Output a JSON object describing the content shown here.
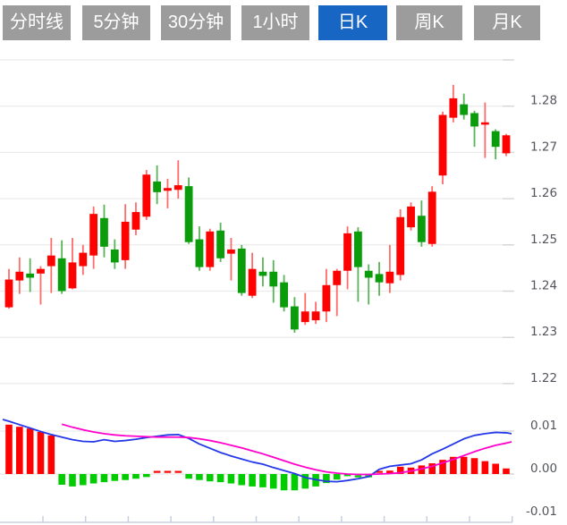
{
  "toolbar": {
    "buttons": [
      {
        "label": "分时线",
        "active": false
      },
      {
        "label": "5分钟",
        "active": false
      },
      {
        "label": "30分钟",
        "active": false
      },
      {
        "label": "1小时",
        "active": false
      },
      {
        "label": "日K",
        "active": true
      },
      {
        "label": "周K",
        "active": false
      },
      {
        "label": "月K",
        "active": false
      }
    ]
  },
  "colors": {
    "up_body": "#fe0101",
    "up_wick": "#ff6b6b",
    "down_body": "#0a9c0a",
    "down_wick": "#58b458",
    "hist_up": "#fe0101",
    "hist_down": "#00cc00",
    "dif_line": "#2438e8",
    "dea_line": "#ff00cc",
    "grid": "#ececec",
    "grid_stub": "#d4d4d4",
    "zero_line": "#e8e8e8",
    "axis_text": "#54555c",
    "x_axis": "#c9cfdf",
    "button_bg": "#9c9c9c",
    "button_active_bg": "#1766c4",
    "button_text": "#ffffff"
  },
  "chart_data": {
    "type": "candlestick-with-macd",
    "price_panel": {
      "ylim": [
        1.218,
        1.292
      ],
      "gridline_values": [
        1.29,
        1.28,
        1.27,
        1.26,
        1.25,
        1.24,
        1.23,
        1.22
      ],
      "axis_labels": [
        "1.28",
        "1.27",
        "1.26",
        "1.25",
        "1.24",
        "1.23",
        "1.22"
      ],
      "up_means": "close >= open is red (CN convention)",
      "candles": [
        {
          "o": 1.2365,
          "h": 1.2448,
          "l": 1.2362,
          "c": 1.2425
        },
        {
          "o": 1.2423,
          "h": 1.2473,
          "l": 1.2394,
          "c": 1.2442
        },
        {
          "o": 1.2438,
          "h": 1.2471,
          "l": 1.2398,
          "c": 1.2429
        },
        {
          "o": 1.2438,
          "h": 1.2454,
          "l": 1.2371,
          "c": 1.2448
        },
        {
          "o": 1.2454,
          "h": 1.2515,
          "l": 1.2396,
          "c": 1.2477
        },
        {
          "o": 1.2471,
          "h": 1.251,
          "l": 1.2394,
          "c": 1.24
        },
        {
          "o": 1.2406,
          "h": 1.2515,
          "l": 1.2404,
          "c": 1.2462
        },
        {
          "o": 1.2454,
          "h": 1.25,
          "l": 1.2435,
          "c": 1.2483
        },
        {
          "o": 1.2477,
          "h": 1.2583,
          "l": 1.2448,
          "c": 1.2567
        },
        {
          "o": 1.2558,
          "h": 1.2587,
          "l": 1.2473,
          "c": 1.2496
        },
        {
          "o": 1.249,
          "h": 1.2512,
          "l": 1.2448,
          "c": 1.2462
        },
        {
          "o": 1.2467,
          "h": 1.2588,
          "l": 1.2448,
          "c": 1.255
        },
        {
          "o": 1.2533,
          "h": 1.2592,
          "l": 1.2521,
          "c": 1.2571
        },
        {
          "o": 1.2561,
          "h": 1.2662,
          "l": 1.2554,
          "c": 1.2652
        },
        {
          "o": 1.2637,
          "h": 1.2672,
          "l": 1.2588,
          "c": 1.2614
        },
        {
          "o": 1.2617,
          "h": 1.2643,
          "l": 1.2579,
          "c": 1.2623
        },
        {
          "o": 1.2619,
          "h": 1.2683,
          "l": 1.26,
          "c": 1.2629
        },
        {
          "o": 1.2627,
          "h": 1.2646,
          "l": 1.2502,
          "c": 1.2506
        },
        {
          "o": 1.2512,
          "h": 1.254,
          "l": 1.2444,
          "c": 1.2452
        },
        {
          "o": 1.2452,
          "h": 1.2535,
          "l": 1.2444,
          "c": 1.2529
        },
        {
          "o": 1.2531,
          "h": 1.2548,
          "l": 1.2463,
          "c": 1.2471
        },
        {
          "o": 1.2481,
          "h": 1.2515,
          "l": 1.2423,
          "c": 1.249
        },
        {
          "o": 1.2492,
          "h": 1.25,
          "l": 1.239,
          "c": 1.2396
        },
        {
          "o": 1.239,
          "h": 1.2483,
          "l": 1.2385,
          "c": 1.2448
        },
        {
          "o": 1.2442,
          "h": 1.2473,
          "l": 1.241,
          "c": 1.2433
        },
        {
          "o": 1.2442,
          "h": 1.2467,
          "l": 1.2375,
          "c": 1.241
        },
        {
          "o": 1.2419,
          "h": 1.2435,
          "l": 1.2356,
          "c": 1.2365
        },
        {
          "o": 1.2367,
          "h": 1.2387,
          "l": 1.231,
          "c": 1.2317
        },
        {
          "o": 1.2333,
          "h": 1.2396,
          "l": 1.2327,
          "c": 1.2356
        },
        {
          "o": 1.2337,
          "h": 1.2377,
          "l": 1.2329,
          "c": 1.2356
        },
        {
          "o": 1.2356,
          "h": 1.2448,
          "l": 1.2333,
          "c": 1.2413
        },
        {
          "o": 1.2413,
          "h": 1.2448,
          "l": 1.2346,
          "c": 1.2444
        },
        {
          "o": 1.2444,
          "h": 1.254,
          "l": 1.2404,
          "c": 1.2525
        },
        {
          "o": 1.2529,
          "h": 1.2538,
          "l": 1.2377,
          "c": 1.2452
        },
        {
          "o": 1.2444,
          "h": 1.2458,
          "l": 1.2371,
          "c": 1.2429
        },
        {
          "o": 1.2437,
          "h": 1.2463,
          "l": 1.239,
          "c": 1.2419
        },
        {
          "o": 1.2417,
          "h": 1.25,
          "l": 1.2396,
          "c": 1.2442
        },
        {
          "o": 1.2435,
          "h": 1.2577,
          "l": 1.2423,
          "c": 1.256
        },
        {
          "o": 1.2538,
          "h": 1.2592,
          "l": 1.2531,
          "c": 1.2583
        },
        {
          "o": 1.2563,
          "h": 1.2596,
          "l": 1.2496,
          "c": 1.2506
        },
        {
          "o": 1.2502,
          "h": 1.2627,
          "l": 1.2496,
          "c": 1.2615
        },
        {
          "o": 1.265,
          "h": 1.2788,
          "l": 1.2631,
          "c": 1.2781
        },
        {
          "o": 1.2775,
          "h": 1.2846,
          "l": 1.2765,
          "c": 1.2817
        },
        {
          "o": 1.2804,
          "h": 1.2827,
          "l": 1.2771,
          "c": 1.2781
        },
        {
          "o": 1.2785,
          "h": 1.279,
          "l": 1.2712,
          "c": 1.2756
        },
        {
          "o": 1.276,
          "h": 1.2808,
          "l": 1.2688,
          "c": 1.2765
        },
        {
          "o": 1.2746,
          "h": 1.275,
          "l": 1.2685,
          "c": 1.2712
        },
        {
          "o": 1.2698,
          "h": 1.274,
          "l": 1.2692,
          "c": 1.2737
        }
      ]
    },
    "macd_panel": {
      "ylim": [
        -0.012,
        0.013
      ],
      "axis_labels": [
        "0.01",
        "0.00",
        "-0.01"
      ],
      "axis_label_values": [
        0.01,
        0.0,
        -0.01
      ],
      "gridline_values": [
        0.01,
        0.0
      ],
      "histogram": [
        0.0115,
        0.011,
        0.0106,
        0.0098,
        0.009,
        -0.0025,
        -0.0029,
        -0.0026,
        -0.0022,
        -0.0019,
        -0.0016,
        -0.0014,
        -0.0011,
        -0.0007,
        0.0002,
        0.0003,
        0.0002,
        -0.0011,
        -0.0014,
        -0.0017,
        -0.0019,
        -0.0022,
        -0.0026,
        -0.0029,
        -0.0031,
        -0.0034,
        -0.0038,
        -0.0038,
        -0.0034,
        -0.0029,
        -0.0021,
        -0.0013,
        -0.0005,
        -0.0002,
        -0.0002,
        0.0002,
        0.0008,
        0.0017,
        0.0015,
        0.002,
        0.0025,
        0.0033,
        0.004,
        0.004,
        0.0037,
        0.003,
        0.0024,
        0.0013
      ],
      "dif_line": {
        "name": "DIF",
        "lead_value": 0.0127,
        "values": [
          0.0123,
          0.0115,
          0.0107,
          0.0099,
          0.0092,
          0.0086,
          0.008,
          0.0076,
          0.0075,
          0.008,
          0.0076,
          0.0078,
          0.0081,
          0.0085,
          0.0088,
          0.0091,
          0.0092,
          0.0083,
          0.007,
          0.006,
          0.005,
          0.0042,
          0.0035,
          0.0028,
          0.0023,
          0.0015,
          0.0008,
          0.0001,
          -0.0008,
          -0.0013,
          -0.0017,
          -0.0018,
          -0.0015,
          -0.0011,
          -0.0006,
          0.0011,
          0.0018,
          0.0021,
          0.0024,
          0.0033,
          0.0047,
          0.0058,
          0.007,
          0.0082,
          0.009,
          0.0094,
          0.0097,
          0.0096
        ],
        "tail_value": 0.0094
      },
      "dea_line": {
        "name": "DEA",
        "values": [
          null,
          null,
          null,
          null,
          null,
          0.0116,
          0.0109,
          0.0103,
          0.0098,
          0.0094,
          0.0091,
          0.0089,
          0.0088,
          0.0087,
          0.0086,
          0.0086,
          0.0086,
          0.0085,
          0.0082,
          0.0078,
          0.0073,
          0.0067,
          0.0061,
          0.0054,
          0.0047,
          0.0039,
          0.0031,
          0.0023,
          0.0016,
          0.001,
          0.0005,
          0.0002,
          0.0,
          -0.0001,
          -0.0001,
          0.0,
          0.0001,
          0.0003,
          0.0007,
          0.0012,
          0.0018,
          0.0026,
          0.0034,
          0.0043,
          0.0052,
          0.006,
          0.0067,
          0.0072
        ],
        "tail_value": 0.0075
      }
    }
  }
}
